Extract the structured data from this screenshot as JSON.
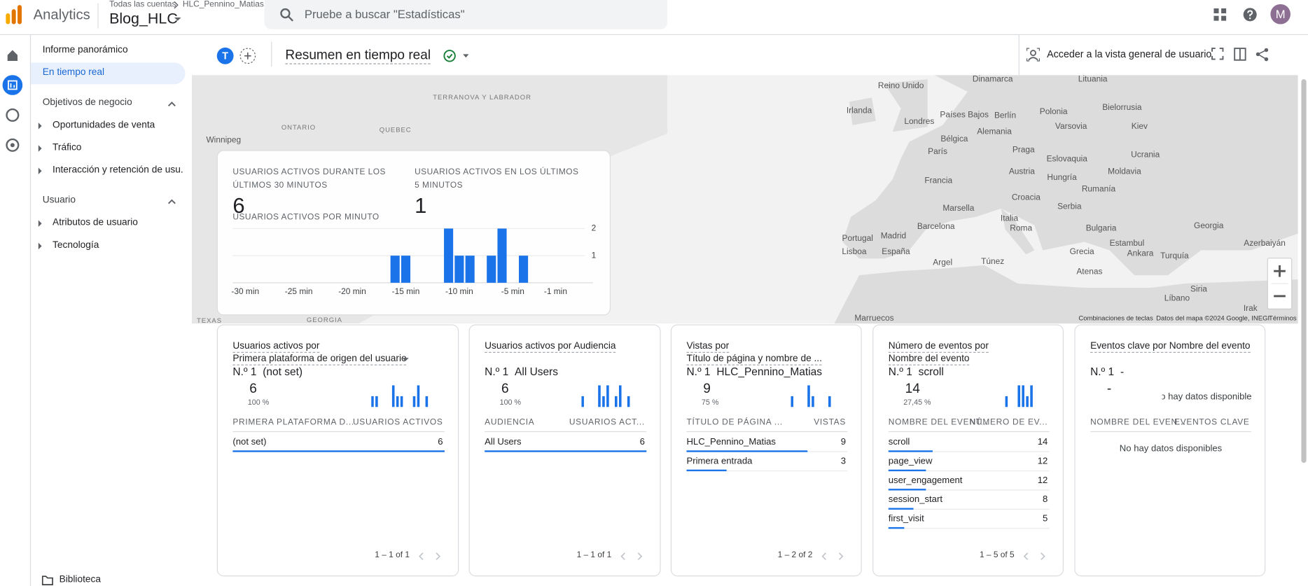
{
  "header": {
    "product": "Analytics",
    "breadcrumb": "Todas las cuentas",
    "account": "HLC_Pennino_Matias",
    "property": "Blog_HLC",
    "search_placeholder": "Pruebe a buscar \"Estadísticas\"",
    "avatar": "M"
  },
  "sidebar": {
    "nav": [
      "Informe panorámico",
      "En tiempo real"
    ],
    "sections": [
      {
        "title": "Objetivos de negocio",
        "items": [
          "Oportunidades de venta",
          "Tráfico",
          "Interacción y retención de usu..."
        ]
      },
      {
        "title": "Usuario",
        "items": [
          "Atributos de usuario",
          "Tecnología"
        ]
      }
    ],
    "footer": "Biblioteca"
  },
  "toolbar": {
    "comparison_avatar": "T",
    "title": "Resumen en tiempo real",
    "user_overview": "Acceder a la vista general de usuario"
  },
  "map": {
    "labels": [
      "Dinamarca",
      "Lituania",
      "Reino Unido",
      "Irlanda",
      "Países Bajos",
      "Berlín",
      "Polonia",
      "Bielorrusia",
      "Londres",
      "Varsovia",
      "Kiev",
      "Alemania",
      "Bélgica",
      "París",
      "Praga",
      "Ucrania",
      "Eslovaquia",
      "Austria",
      "Moldavia",
      "Francia",
      "Hungría",
      "Rumanía",
      "Croacia",
      "Serbia",
      "Marsella",
      "Italia",
      "Barcelona",
      "Roma",
      "Bulgaria",
      "Georgia",
      "Portugal",
      "Madrid",
      "Estambul",
      "Azerbaiyán",
      "España",
      "Lisboa",
      "Grecia",
      "Ankara",
      "Turquía",
      "Túnez",
      "Argel",
      "Atenas",
      "Siria",
      "Líbano",
      "Irak",
      "Marruecos",
      "Winnipeg",
      "ONTARIO",
      "QUEBEC",
      "TERRANOVA Y LABRADOR",
      "TEXAS",
      "GEORGIA"
    ],
    "attribution": [
      "Combinaciones de teclas",
      "Datos del mapa ©2024 Google, INEGI",
      "Términos"
    ]
  },
  "realtime": {
    "metrics": [
      {
        "label": "USUARIOS ACTIVOS DURANTE LOS ÚLTIMOS 30 MINUTOS",
        "value": 6
      },
      {
        "label": "USUARIOS ACTIVOS EN LOS ÚLTIMOS 5 MINUTOS",
        "value": 1
      }
    ],
    "chart": {
      "type": "bar",
      "title": "USUARIOS ACTIVOS POR MINUTO",
      "color": "#1a73e8",
      "x": [
        -30,
        -29,
        -28,
        -27,
        -26,
        -25,
        -24,
        -23,
        -22,
        -21,
        -20,
        -19,
        -18,
        -17,
        -16,
        -15,
        -14,
        -13,
        -12,
        -11,
        -10,
        -9,
        -8,
        -7,
        -6,
        -5,
        -4,
        -3,
        -2,
        -1
      ],
      "values": [
        0,
        0,
        0,
        0,
        0,
        0,
        0,
        0,
        0,
        0,
        0,
        0,
        0,
        0,
        1,
        1,
        0,
        0,
        0,
        2,
        1,
        1,
        0,
        1,
        2,
        0,
        1,
        0,
        0,
        0
      ],
      "xlim": [
        -30,
        -1
      ],
      "xticks": [
        {
          "value": -30,
          "label": "-30 min"
        },
        {
          "value": -25,
          "label": "-25 min"
        },
        {
          "value": -20,
          "label": "-20 min"
        },
        {
          "value": -15,
          "label": "-15 min"
        },
        {
          "value": -10,
          "label": "-10 min"
        },
        {
          "value": -5,
          "label": "-5 min"
        },
        {
          "value": -1,
          "label": "-1 min"
        }
      ],
      "ylim": [
        0,
        2
      ],
      "yticks": [
        1,
        2
      ],
      "grid": true
    }
  },
  "cards": [
    {
      "title": [
        "Usuarios activos por",
        "Primera plataforma de origen del usuario"
      ],
      "rank": "N.º 1",
      "top": "(not set)",
      "value": 6,
      "share": "100 %",
      "sparkline": [
        1,
        1,
        0,
        0,
        0,
        2,
        1,
        1,
        0,
        0,
        1,
        2,
        0,
        1
      ],
      "columns": [
        "PRIMERA PLATAFORMA D...",
        "USUARIOS ACTIVOS"
      ],
      "rows": [
        {
          "label": "(not set)",
          "value": 6
        }
      ],
      "pagination": "1 – 1 of 1"
    },
    {
      "title": [
        "Usuarios activos por Audiencia"
      ],
      "rank": "N.º 1",
      "top": "All Users",
      "value": 6,
      "share": "100 %",
      "sparkline": [
        1,
        0,
        0,
        0,
        2,
        1,
        2,
        0,
        1,
        2,
        0,
        1
      ],
      "columns": [
        "AUDIENCIA",
        "USUARIOS ACT..."
      ],
      "rows": [
        {
          "label": "All Users",
          "value": 6
        }
      ],
      "pagination": "1 – 1 of 1"
    },
    {
      "title": [
        "Vistas por",
        "Título de página y nombre de ..."
      ],
      "rank": "N.º 1",
      "top": "HLC_Pennino_Matias",
      "value": 9,
      "share": "75 %",
      "sparkline": [
        1,
        0,
        0,
        0,
        2,
        1,
        0,
        0,
        0,
        1
      ],
      "columns": [
        "TÍTULO DE PÁGINA ...",
        "VISTAS"
      ],
      "rows": [
        {
          "label": "HLC_Pennino_Matias",
          "value": 9
        },
        {
          "label": "Primera entrada",
          "value": 3
        }
      ],
      "pagination": "1 – 2 of 2"
    },
    {
      "title": [
        "Número de eventos por",
        "Nombre del evento"
      ],
      "rank": "N.º 1",
      "top": "scroll",
      "value": 14,
      "share": "27,45 %",
      "sparkline": [
        1,
        0,
        0,
        2,
        2,
        1,
        2
      ],
      "columns": [
        "NOMBRE DEL EVENT...",
        "NÚMERO DE EV..."
      ],
      "rows": [
        {
          "label": "scroll",
          "value": 14
        },
        {
          "label": "page_view",
          "value": 12
        },
        {
          "label": "user_engagement",
          "value": 12
        },
        {
          "label": "session_start",
          "value": 8
        },
        {
          "label": "first_visit",
          "value": 5
        }
      ],
      "pagination": "1 – 5 of 5"
    },
    {
      "title": [
        "Eventos clave por Nombre del evento"
      ],
      "rank": "N.º 1",
      "top": "-",
      "value": "-",
      "share": "No hay datos disponibles",
      "columns": [
        "NOMBRE DEL EVEN...",
        "EVENTOS CLAVE"
      ],
      "rows": [],
      "empty": "No hay datos disponibles"
    }
  ]
}
